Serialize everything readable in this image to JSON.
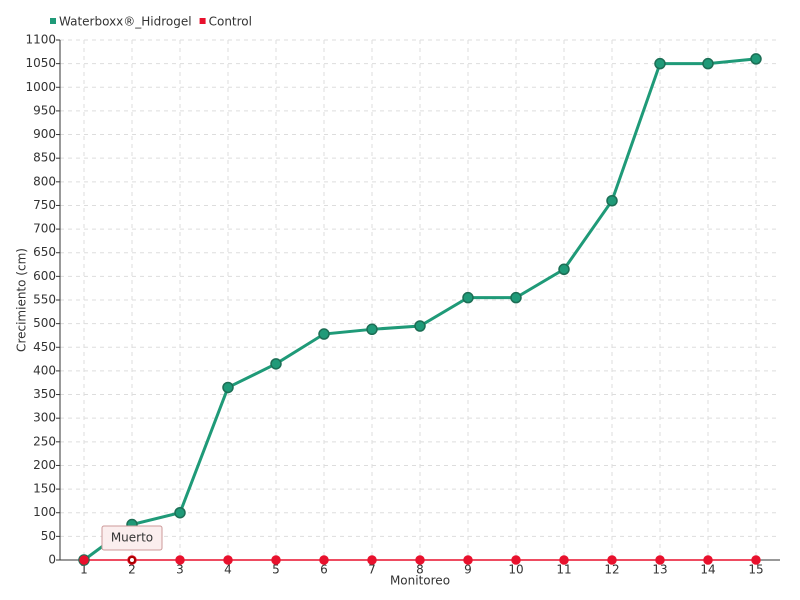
{
  "chart_data": {
    "type": "line",
    "x_label": "Monitoreo",
    "y_label": "Crecimiento (cm)",
    "categories": [
      "1",
      "2",
      "3",
      "4",
      "5",
      "6",
      "7",
      "8",
      "9",
      "10",
      "11",
      "12",
      "13",
      "14",
      "15"
    ],
    "series": [
      {
        "name": "Waterboxx®_Hidrogel",
        "color": "#1f9a78",
        "values": [
          0,
          75,
          100,
          365,
          415,
          478,
          488,
          495,
          555,
          555,
          615,
          760,
          1050,
          1050,
          1060
        ]
      },
      {
        "name": "Control",
        "color": "#e8112d",
        "values": [
          0,
          0,
          0,
          0,
          0,
          0,
          0,
          0,
          0,
          0,
          0,
          0,
          0,
          0,
          0
        ]
      }
    ],
    "annotations": [
      {
        "text": "Muerto"
      }
    ],
    "ylim": [
      0,
      1100
    ],
    "yticks": [
      0,
      50,
      100,
      150,
      200,
      250,
      300,
      350,
      400,
      450,
      500,
      550,
      600,
      650,
      700,
      750,
      800,
      850,
      900,
      950,
      1000,
      1050,
      1100
    ],
    "grid": true
  }
}
